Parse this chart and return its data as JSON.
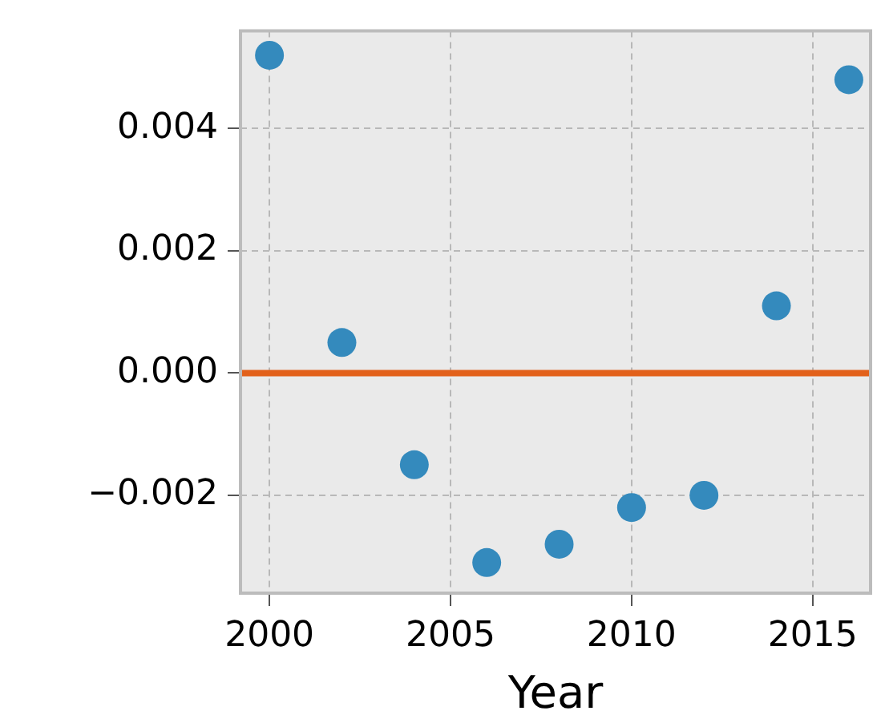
{
  "chart_data": {
    "type": "scatter",
    "xlabel": "Year",
    "x": [
      2000,
      2002,
      2004,
      2006,
      2008,
      2010,
      2012,
      2014,
      2016
    ],
    "series": [
      {
        "color": "#348abd",
        "values": [
          0.0052,
          0.0005,
          -0.0015,
          -0.0031,
          -0.0028,
          -0.0022,
          -0.002,
          0.0011,
          0.0048
        ]
      }
    ],
    "xlim": [
      1999.2,
      2016.6
    ],
    "xticks": [
      2000,
      2005,
      2010,
      2015
    ],
    "ylim": [
      -0.0036,
      0.0056
    ],
    "yticks": [
      {
        "value": -0.002,
        "label": "−0.002"
      },
      {
        "value": 0,
        "label": "0.000"
      },
      {
        "value": 0.002,
        "label": "0.002"
      },
      {
        "value": 0.004,
        "label": "0.004"
      }
    ],
    "ref_lines": [
      {
        "axis": "y",
        "value": 0,
        "color": "#e2611b"
      }
    ],
    "grid": true,
    "marker": "circle"
  }
}
